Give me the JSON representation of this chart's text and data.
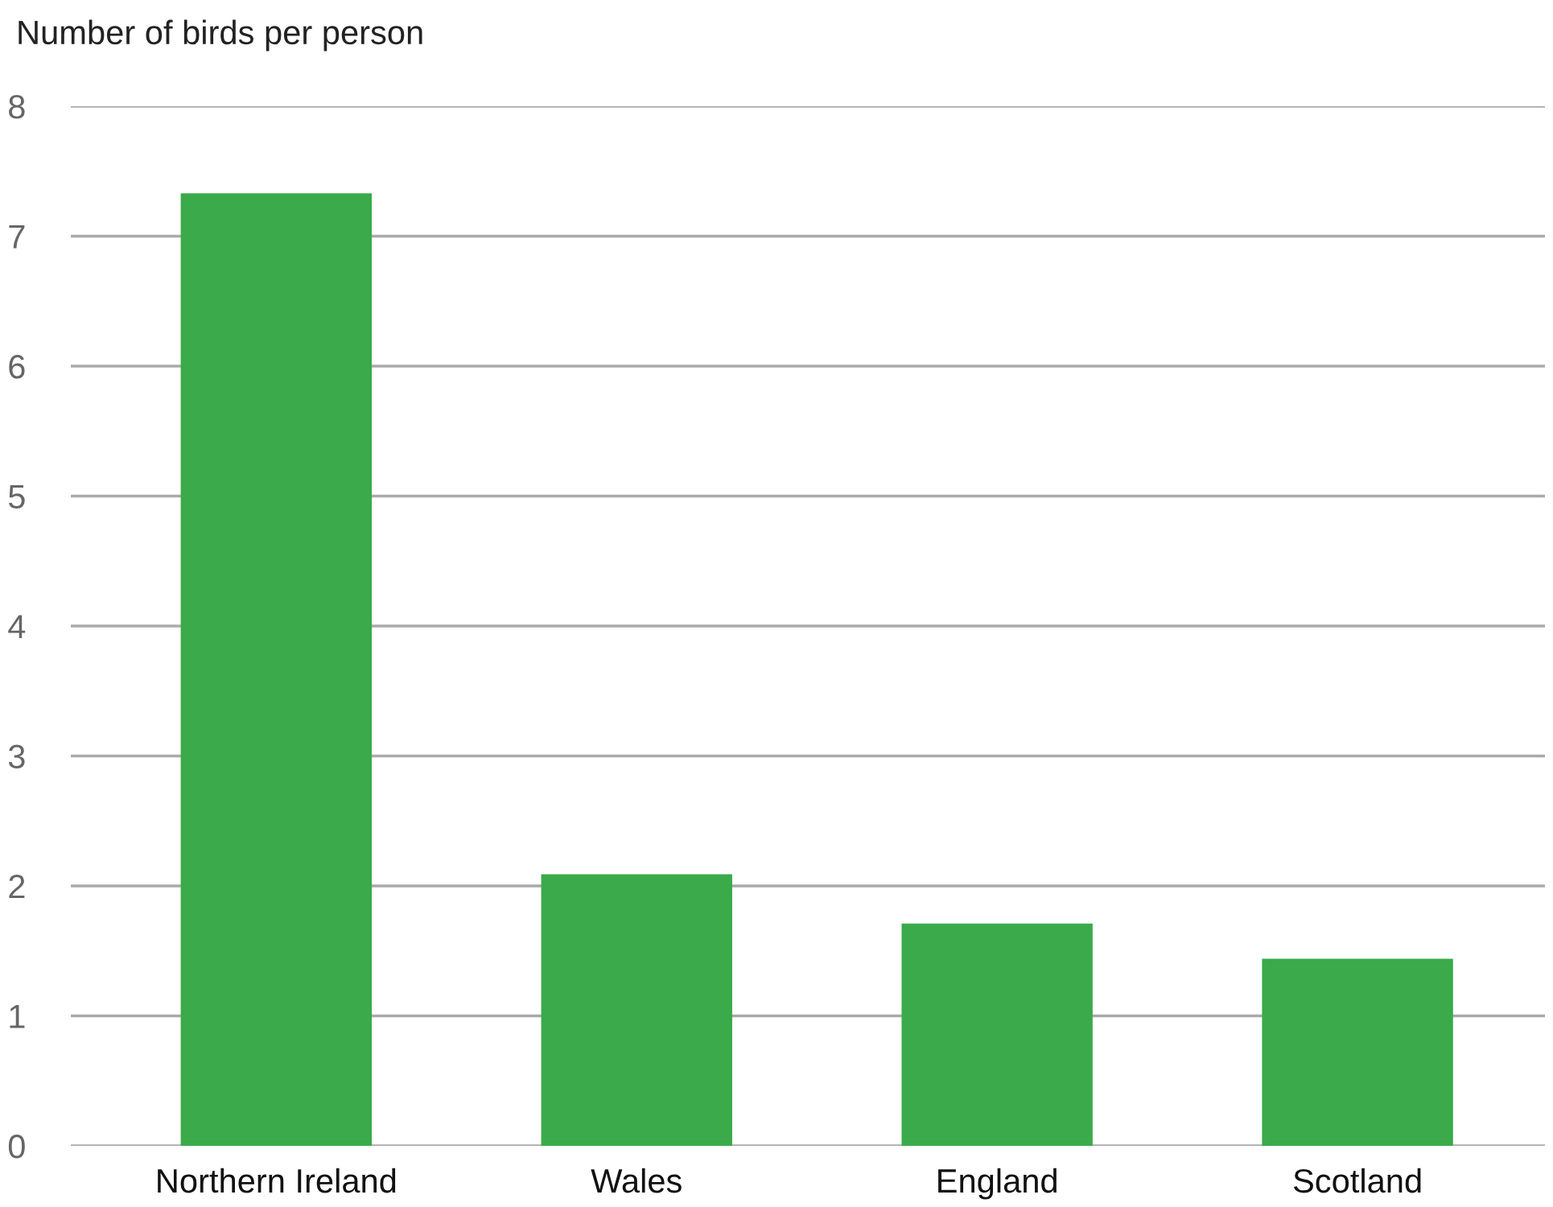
{
  "chart_data": {
    "type": "bar",
    "ylabel": "Number of birds per person",
    "categories": [
      "Northern Ireland",
      "Wales",
      "England",
      "Scotland"
    ],
    "values": [
      7.33,
      2.09,
      1.71,
      1.44
    ],
    "color": "#3aaa4a",
    "ylim": [
      0,
      8
    ],
    "yticks": [
      0,
      1,
      2,
      3,
      4,
      5,
      6,
      7,
      8
    ],
    "grid": "y",
    "legend": false
  }
}
